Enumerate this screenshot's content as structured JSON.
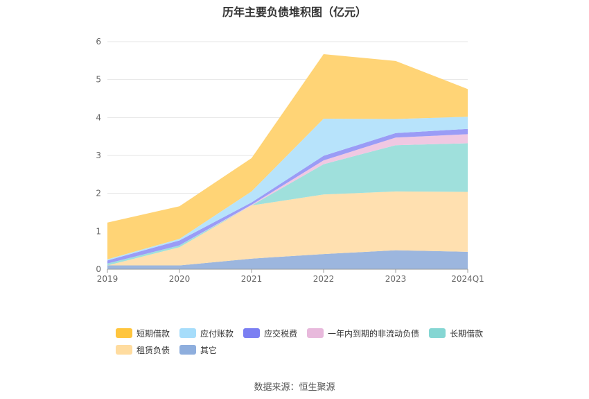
{
  "title": "历年主要负债堆积图（亿元）",
  "source": "数据来源：恒生聚源",
  "chart_data": {
    "type": "area",
    "stacked": true,
    "x": [
      "2019",
      "2020",
      "2021",
      "2022",
      "2023",
      "2024Q1"
    ],
    "ylim": [
      0,
      6
    ],
    "yticks": [
      0,
      1,
      2,
      3,
      4,
      5,
      6
    ],
    "grid": true,
    "legend_position": "bottom",
    "series": [
      {
        "name": "其它",
        "color": "#9cb6de",
        "values": [
          0.1,
          0.1,
          0.28,
          0.4,
          0.5,
          0.46
        ]
      },
      {
        "name": "租赁负债",
        "color": "#ffe0b0",
        "values": [
          0.0,
          0.48,
          1.4,
          1.57,
          1.55,
          1.58
        ]
      },
      {
        "name": "长期借款",
        "color": "#9fe0dc",
        "values": [
          0.05,
          0.05,
          0.0,
          0.8,
          1.22,
          1.28
        ]
      },
      {
        "name": "一年内到期的非流动负债",
        "color": "#f0c8e2",
        "values": [
          0.0,
          0.0,
          0.02,
          0.1,
          0.2,
          0.24
        ]
      },
      {
        "name": "应交税费",
        "color": "#9a9cf6",
        "values": [
          0.08,
          0.13,
          0.06,
          0.12,
          0.12,
          0.14
        ]
      },
      {
        "name": "应付账款",
        "color": "#b7e3fb",
        "values": [
          0.03,
          0.04,
          0.29,
          0.98,
          0.37,
          0.32
        ]
      },
      {
        "name": "短期借款",
        "color": "#ffd476",
        "values": [
          0.97,
          0.86,
          0.88,
          1.7,
          1.53,
          0.73
        ]
      }
    ]
  },
  "legend": [
    {
      "label": "短期借款",
      "color": "#ffc53d"
    },
    {
      "label": "应付账款",
      "color": "#a6ddfb"
    },
    {
      "label": "应交税费",
      "color": "#7b7ff2"
    },
    {
      "label": "一年内到期的非流动负债",
      "color": "#e8b9dc"
    },
    {
      "label": "长期借款",
      "color": "#85d6d3"
    },
    {
      "label": "租赁负债",
      "color": "#ffdc9f"
    },
    {
      "label": "其它",
      "color": "#8eaedd"
    }
  ]
}
